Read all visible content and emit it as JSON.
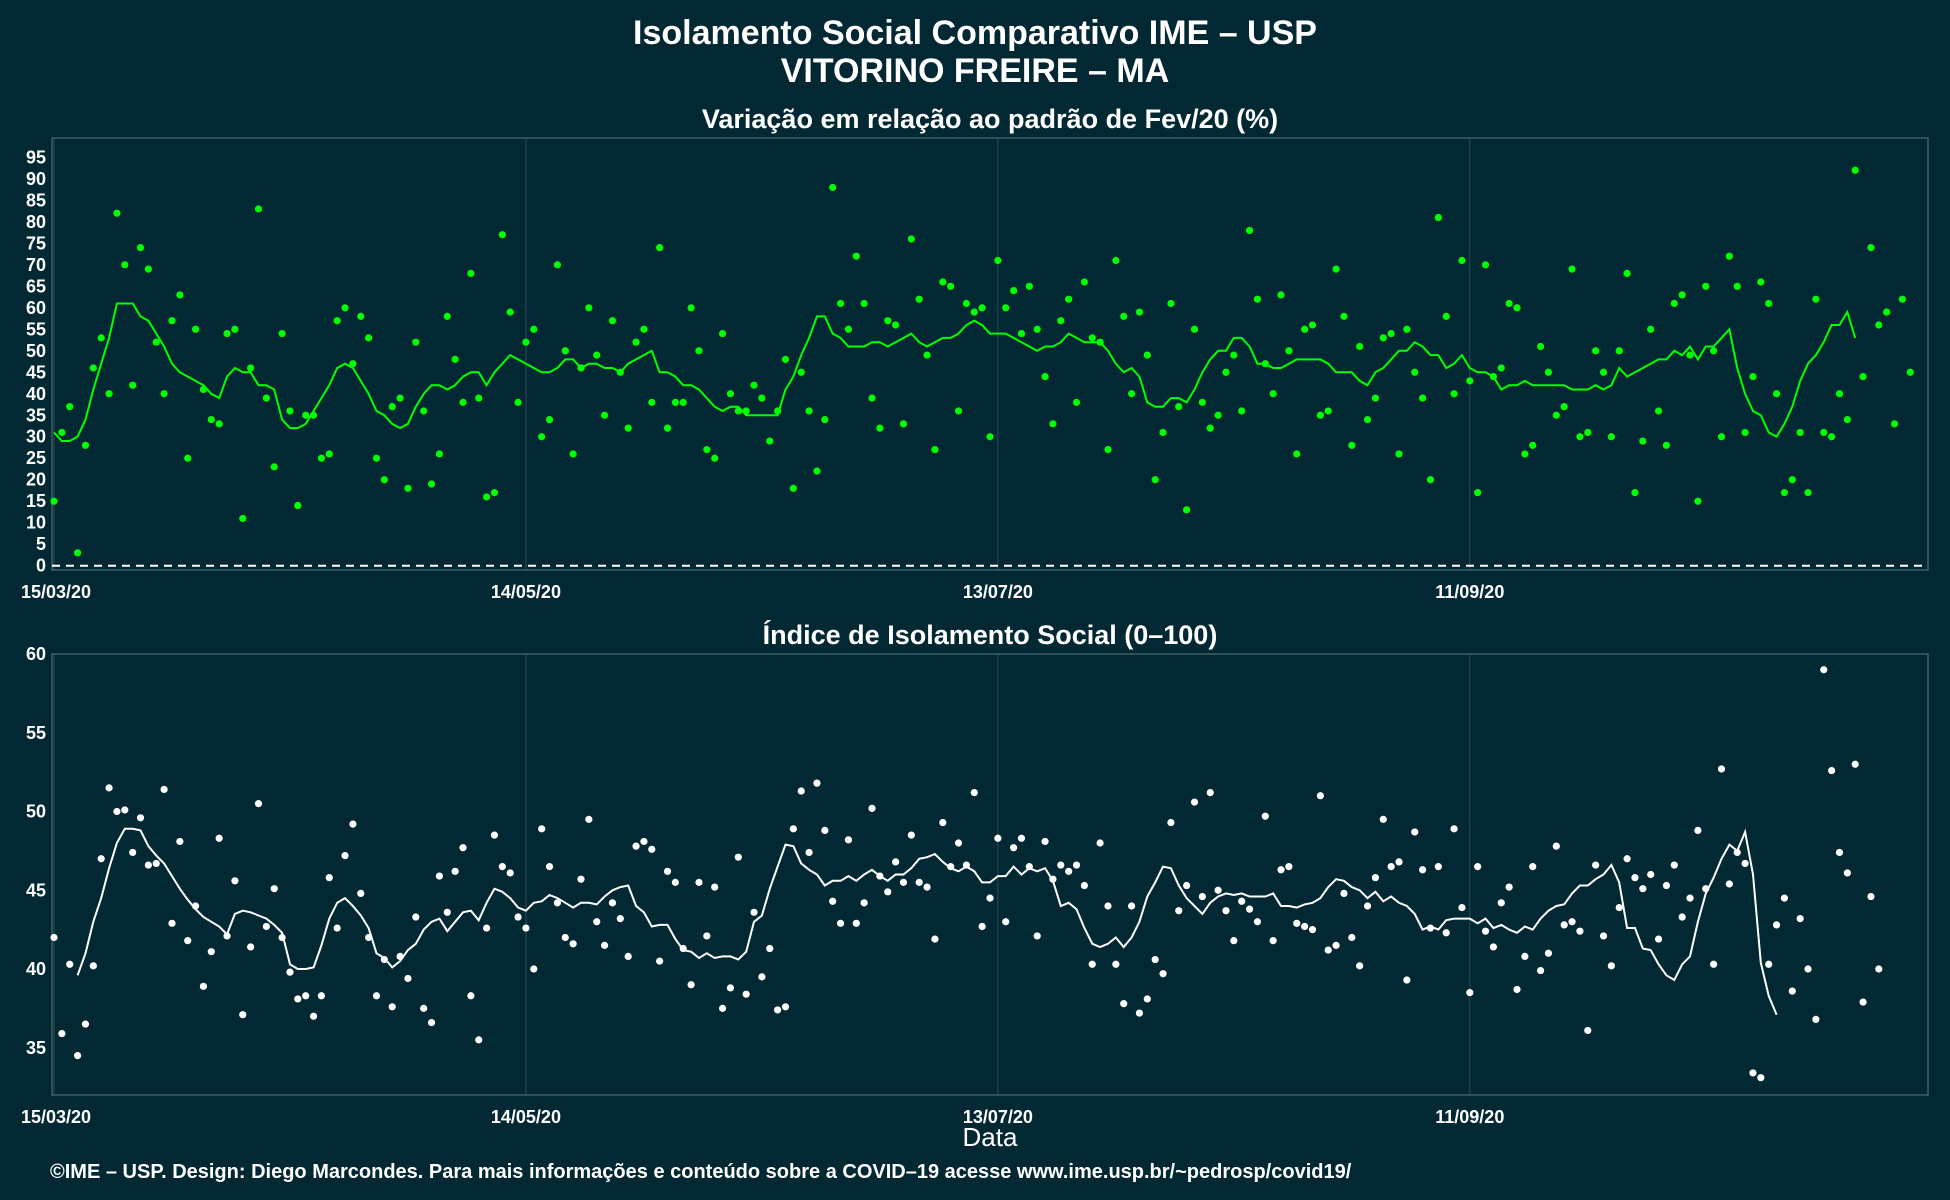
{
  "title_line1": "Isolamento Social Comparativo IME – USP",
  "title_line2": "VITORINO FREIRE – MA",
  "xlabel": "Data",
  "footer": "©IME – USP. Design: Diego Marcondes. Para mais informações e conteúdo sobre a COVID–19 acesse www.ime.usp.br/~pedrosp/covid19/",
  "colors": {
    "background": "#022833",
    "panel_border": "#3f5f68",
    "grid": "#2c4c55",
    "green": "#00ff00",
    "white": "#ffffff"
  },
  "chart_data": [
    {
      "type": "scatter",
      "title": "Variação em relação ao padrão de Fev/20 (%)",
      "x_start": "15/03/20",
      "x_ticks": [
        "15/03/20",
        "14/05/20",
        "13/07/20",
        "11/09/20"
      ],
      "x_tick_days": [
        0,
        60,
        120,
        180
      ],
      "xlim_days": [
        0,
        238
      ],
      "ylim": [
        0,
        95
      ],
      "y_ticks": [
        0,
        5,
        10,
        15,
        20,
        25,
        30,
        35,
        40,
        45,
        50,
        55,
        60,
        65,
        70,
        75,
        80,
        85,
        90,
        95
      ],
      "reference_line": 0,
      "grid": true,
      "series": [
        {
          "kind": "points",
          "values": [
            15,
            31,
            37,
            3,
            28,
            46,
            53,
            40,
            82,
            70,
            42,
            74,
            69,
            52,
            40,
            57,
            63,
            25,
            55,
            41,
            34,
            33,
            54,
            55,
            11,
            46,
            83,
            39,
            23,
            54,
            36,
            14,
            35,
            35,
            25,
            26,
            57,
            60,
            47,
            58,
            53,
            25,
            20,
            37,
            39,
            18,
            52,
            36,
            19,
            26,
            58,
            48,
            38,
            68,
            39,
            16,
            17,
            77,
            59,
            38,
            52,
            55,
            30,
            34,
            70,
            50,
            26,
            46,
            60,
            49,
            35,
            57,
            45,
            32,
            52,
            55,
            38,
            74,
            32,
            38,
            38,
            60,
            50,
            27,
            25,
            54,
            40,
            36,
            36,
            42,
            39,
            29,
            36,
            48,
            18,
            45,
            36,
            22,
            34,
            88,
            61,
            55,
            72,
            61,
            39,
            32,
            57,
            56,
            33,
            76,
            62,
            49,
            27,
            66,
            65,
            36,
            61,
            59,
            60,
            30,
            71,
            60,
            64,
            54,
            65,
            55,
            44,
            33,
            57,
            62,
            38,
            66,
            53,
            52,
            27,
            71,
            58,
            40,
            59,
            49,
            20,
            31,
            61,
            37,
            13,
            55,
            38,
            32,
            35,
            45,
            49,
            36,
            78,
            62,
            47,
            40,
            63,
            50,
            26,
            55,
            56,
            35,
            36,
            69,
            58,
            28,
            51,
            34,
            39,
            53,
            54,
            26,
            55,
            45,
            39,
            20,
            81,
            58,
            40,
            71,
            43,
            17,
            70,
            44,
            46,
            61,
            60,
            26,
            28,
            51,
            45,
            35,
            37,
            69,
            30,
            31,
            50,
            45,
            30,
            50,
            68,
            17,
            29,
            55,
            36,
            28,
            61,
            63,
            49,
            15,
            65,
            50,
            30,
            72,
            65,
            31,
            44,
            66,
            61,
            40,
            17,
            20,
            31,
            17,
            62,
            31,
            30,
            40,
            34,
            92,
            44,
            74,
            56,
            59,
            33,
            62,
            45
          ]
        },
        {
          "kind": "moving_average",
          "values": [
            31,
            29,
            29,
            30,
            34,
            41,
            47,
            53,
            61,
            61,
            61,
            58,
            57,
            54,
            51,
            47,
            45,
            44,
            43,
            42,
            40,
            39,
            44,
            46,
            45,
            45,
            42,
            42,
            41,
            34,
            32,
            32,
            33,
            36,
            39,
            42,
            46,
            47,
            46,
            43,
            40,
            36,
            35,
            33,
            32,
            33,
            37,
            40,
            42,
            42,
            41,
            42,
            44,
            45,
            45,
            42,
            45,
            47,
            49,
            48,
            47,
            46,
            45,
            45,
            46,
            48,
            48,
            46,
            47,
            47,
            46,
            46,
            45,
            47,
            48,
            49,
            50,
            45,
            45,
            44,
            42,
            42,
            41,
            39,
            37,
            36,
            37,
            37,
            35,
            35,
            35,
            35,
            35,
            41,
            44,
            49,
            53,
            58,
            58,
            54,
            53,
            51,
            51,
            51,
            52,
            52,
            51,
            52,
            53,
            54,
            52,
            51,
            52,
            53,
            53,
            54,
            56,
            57,
            56,
            54,
            54,
            54,
            53,
            52,
            51,
            50,
            51,
            51,
            52,
            54,
            53,
            52,
            52,
            52,
            50,
            47,
            45,
            46,
            44,
            38,
            37,
            37,
            39,
            39,
            38,
            41,
            45,
            48,
            50,
            50,
            53,
            53,
            51,
            47,
            47,
            46,
            46,
            47,
            48,
            48,
            48,
            48,
            47,
            45,
            45,
            45,
            43,
            42,
            45,
            46,
            48,
            50,
            50,
            52,
            51,
            49,
            49,
            46,
            47,
            49,
            46,
            45,
            45,
            44,
            41,
            42,
            42,
            43,
            42,
            42,
            42,
            42,
            42,
            41,
            41,
            41,
            42,
            41,
            42,
            46,
            44,
            45,
            46,
            47,
            48,
            48,
            50,
            49,
            51,
            48,
            51,
            51,
            53,
            55,
            46,
            40,
            36,
            35,
            31,
            30,
            33,
            37,
            43,
            47,
            49,
            52,
            56,
            56,
            59,
            53
          ]
        }
      ]
    },
    {
      "type": "scatter",
      "title": "Índice de Isolamento Social (0–100)",
      "x_ticks": [
        "15/03/20",
        "14/05/20",
        "13/07/20",
        "11/09/20"
      ],
      "x_tick_days": [
        0,
        60,
        120,
        180
      ],
      "xlim_days": [
        0,
        238
      ],
      "ylim": [
        32,
        60
      ],
      "y_ticks": [
        35,
        40,
        45,
        50,
        55,
        60
      ],
      "grid": true,
      "series": [
        {
          "kind": "points",
          "values": [
            42,
            35.9,
            40.3,
            34.5,
            36.5,
            40.2,
            47,
            51.5,
            50,
            50.1,
            47.4,
            49.6,
            46.6,
            46.7,
            51.4,
            42.9,
            48.1,
            41.8,
            44,
            38.9,
            41.1,
            48.3,
            42.1,
            45.6,
            37.1,
            41.4,
            50.5,
            42.7,
            45.1,
            42,
            39.8,
            38.1,
            38.3,
            37.0,
            38.3,
            45.8,
            42.6,
            47.2,
            49.2,
            44.8,
            42.0,
            38.3,
            40.6,
            37.6,
            40.8,
            39.4,
            43.3,
            37.5,
            36.6,
            45.9,
            43.6,
            46.2,
            47.7,
            38.3,
            35.5,
            42.6,
            48.5,
            46.5,
            46.1,
            43.3,
            42.6,
            40,
            48.9,
            46.5,
            44.2,
            42.0,
            41.6,
            45.7,
            49.5,
            43.0,
            41.5,
            44.2,
            43.2,
            40.8,
            47.8,
            48.1,
            47.6,
            40.5,
            46.2,
            45.5,
            41.3,
            39.0,
            45.5,
            42.1,
            45.2,
            37.5,
            38.8,
            47.1,
            38.4,
            43.6,
            39.5,
            41.3,
            37.4,
            37.6,
            48.9,
            51.3,
            47.4,
            51.8,
            48.8,
            44.3,
            42.9,
            48.2,
            42.9,
            44.2,
            50.2,
            45.9,
            44.9,
            46.8,
            45.5,
            48.5,
            45.5,
            45.2,
            41.9,
            49.3,
            46.5,
            48.0,
            46.6,
            51.2,
            42.7,
            44.5,
            48.3,
            43.0,
            47.7,
            48.3,
            46.5,
            42.1,
            48.1,
            45.7,
            46.6,
            46.2,
            46.6,
            45.3,
            40.3,
            48.0,
            44.0,
            40.3,
            37.8,
            44.0,
            37.2,
            38.1,
            40.6,
            39.7,
            49.3,
            43.7,
            45.3,
            50.6,
            44.6,
            51.2,
            45.0,
            43.7,
            41.8,
            44.3,
            43.8,
            43.0,
            49.7,
            41.8,
            46.3,
            46.5,
            42.9,
            42.7,
            42.5,
            51.0,
            41.2,
            41.5,
            44.8,
            42.0,
            40.2,
            44.0,
            45.8,
            49.5,
            46.5,
            46.8,
            39.3,
            48.7,
            46.3,
            42.6,
            46.5,
            42.3,
            48.9,
            43.9,
            38.5,
            46.5,
            42.4,
            41.4,
            44.2,
            45.2,
            38.7,
            40.8,
            46.5,
            39.9,
            41.0,
            47.8,
            42.8,
            43.0,
            42.4,
            36.1,
            46.6,
            42.1,
            40.2,
            43.9,
            47.0,
            45.8,
            45.1,
            46.0,
            41.9,
            45.3,
            46.6,
            43.3,
            44.5,
            48.8,
            45.1,
            40.3,
            52.7,
            45.4,
            47.4,
            46.7,
            33.4,
            33.1,
            40.3,
            42.8,
            44.5,
            38.6,
            43.2,
            40.0,
            36.8,
            59.0,
            52.6,
            47.4,
            46.1,
            53.0,
            37.9,
            44.6,
            40.0
          ]
        },
        {
          "kind": "moving_average",
          "start_day": 3,
          "values": [
            39.6,
            41,
            43,
            44.5,
            46.4,
            48,
            48.9,
            48.9,
            48.8,
            47.8,
            47.2,
            46.7,
            45.9,
            45.1,
            44.4,
            43.8,
            43.3,
            43,
            42.7,
            42.2,
            43.5,
            43.7,
            43.6,
            43.4,
            43.2,
            42.8,
            42.3,
            40.3,
            40.0,
            40.0,
            40.1,
            41.5,
            43.2,
            44.2,
            44.5,
            44.0,
            43.4,
            42.6,
            41.0,
            40.7,
            40.1,
            40.5,
            41.2,
            41.6,
            42.5,
            43,
            43.2,
            42.4,
            43,
            43.6,
            43.7,
            43.1,
            44.2,
            45.1,
            44.9,
            44.5,
            43.9,
            43.7,
            44.2,
            44.3,
            44.7,
            44.5,
            44.2,
            43.9,
            44.2,
            44.2,
            44.1,
            44.6,
            45.0,
            45.2,
            45.3,
            44.0,
            43.6,
            42.7,
            42.8,
            42.8,
            41.9,
            41.2,
            41.1,
            40.7,
            41.0,
            40.7,
            40.8,
            40.8,
            40.6,
            41.1,
            43.0,
            43.4,
            45.1,
            46.5,
            47.9,
            47.8,
            46.7,
            46.3,
            46.0,
            45.3,
            45.6,
            45.6,
            45.9,
            45.6,
            46.0,
            46.3,
            45.9,
            45.6,
            46.0,
            46.0,
            46.4,
            47.0,
            47.1,
            47.3,
            46.8,
            46.4,
            46.2,
            46.5,
            46.2,
            45.5,
            45.5,
            45.9,
            45.9,
            46.5,
            46.0,
            46.4,
            46.2,
            46.4,
            45.6,
            44.0,
            44.2,
            43.8,
            42.6,
            41.6,
            41.4,
            41.6,
            42.0,
            41.4,
            42.0,
            43.0,
            44.6,
            45.5,
            46.5,
            46.4,
            45.3,
            44.5,
            44.0,
            43.5,
            44.2,
            44.6,
            44.8,
            44.7,
            44.8,
            44.6,
            44.6,
            44.6,
            44.8,
            44.0,
            44.0,
            43.9,
            44.1,
            44.2,
            44.5,
            45.2,
            45.7,
            45.6,
            45.2,
            45.0,
            44.5,
            44.9,
            44.3,
            44.6,
            44.2,
            44.0,
            43.5,
            42.5,
            42.7,
            42.5,
            43.1,
            43.2,
            43.2,
            43.2,
            42.9,
            43.2,
            42.6,
            42.8,
            42.5,
            42.3,
            42.7,
            42.5,
            43.2,
            43.7,
            44.0,
            44.1,
            44.8,
            45.3,
            45.3,
            45.7,
            46.0,
            46.6,
            45.5,
            42.6,
            42.6,
            41.3,
            41.2,
            40.3,
            39.6,
            39.3,
            40.3,
            40.8,
            43.0,
            44.8,
            45.8,
            47.0,
            47.9,
            47.5,
            48.7,
            46.0,
            40.4,
            38.3,
            37.1
          ]
        }
      ]
    }
  ]
}
